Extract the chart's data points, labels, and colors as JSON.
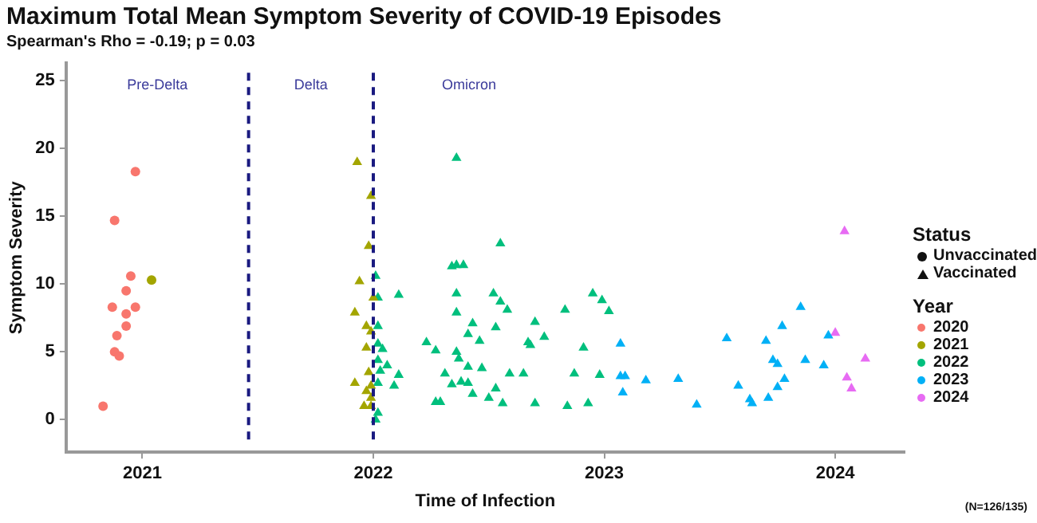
{
  "chart_data": {
    "type": "scatter",
    "title": "Maximum Total Mean Symptom Severity of COVID-19 Episodes",
    "subtitle": "Spearman's Rho = -0.19; p = 0.03",
    "xlabel": "Time of Infection",
    "ylabel": "Symptom Severity",
    "legend_title": "Year",
    "legend": "right",
    "grid": false,
    "xlim": [
      2020.67,
      2024.3
    ],
    "xticks": [
      2021,
      2022,
      2023,
      2024
    ],
    "ylim": [
      -2.4,
      26.3
    ],
    "yticks": [
      0,
      5,
      10,
      15,
      20,
      25
    ],
    "ref_lines": [
      {
        "axis": "x",
        "value": 2021.46,
        "color": "#1a1a80",
        "line_style": "dashed"
      },
      {
        "axis": "x",
        "value": 2022.0,
        "color": "#1a1a80",
        "line_style": "dashed"
      }
    ],
    "annotations": [
      "Pre-Delta",
      "Delta",
      "Omicron",
      "Status",
      "Unvaccinated",
      "Vaccinated",
      "(N=126/135)"
    ],
    "series": [
      {
        "name": "2020",
        "color": "#f8766d",
        "marker": "circle",
        "x": [
          2020.83,
          2020.88,
          2020.97,
          2020.95,
          2020.93,
          2020.87,
          2020.97,
          2020.93,
          2020.93,
          2020.89,
          2020.88,
          2020.9
        ],
        "values": [
          1.0,
          14.7,
          18.3,
          10.6,
          9.5,
          8.3,
          8.3,
          7.8,
          6.9,
          6.2,
          5.0,
          4.7
        ]
      },
      {
        "color": "#a3a500",
        "marker": "circle",
        "x": [
          2021.04
        ],
        "values": [
          10.3
        ]
      },
      {
        "name": "2021",
        "color": "#a3a500",
        "marker": "triangle",
        "x": [
          2021.93,
          2021.99,
          2021.98,
          2021.94,
          2022.0,
          2021.92,
          2021.97,
          2021.99,
          2021.97,
          2021.98,
          2021.92,
          2021.99,
          2021.97,
          2021.99,
          2021.96,
          2021.99
        ],
        "values": [
          19.0,
          16.5,
          12.8,
          10.2,
          9.0,
          7.9,
          6.9,
          6.5,
          5.3,
          3.5,
          2.7,
          2.5,
          2.1,
          1.6,
          1.0,
          1.0
        ]
      },
      {
        "name": "2022",
        "color": "#00bf7d",
        "marker": "triangle",
        "x": [
          2022.01,
          2022.02,
          2022.02,
          2022.02,
          2022.04,
          2022.02,
          2022.06,
          2022.03,
          2022.11,
          2022.09,
          2022.02,
          2022.02,
          2022.01,
          2022.11,
          2022.36,
          2022.55,
          2022.34,
          2022.36,
          2022.39,
          2022.36,
          2022.52,
          2022.55,
          2022.58,
          2022.36,
          2022.83,
          2022.95,
          2022.99,
          2022.43,
          2022.7,
          2022.53,
          2022.41,
          2022.74,
          2022.23,
          2022.46,
          2022.67,
          2022.68,
          2022.27,
          2022.36,
          2022.91,
          2022.37,
          2022.41,
          2022.47,
          2022.31,
          2022.59,
          2022.65,
          2022.87,
          2022.98,
          2022.34,
          2022.38,
          2022.41,
          2022.53,
          2022.43,
          2022.5,
          2022.27,
          2022.29,
          2022.56,
          2022.7,
          2022.84,
          2022.93,
          2023.02
        ],
        "values": [
          10.6,
          9.0,
          6.9,
          5.6,
          5.2,
          4.4,
          4.0,
          3.6,
          3.3,
          2.5,
          2.7,
          0.5,
          0.0,
          9.2,
          19.3,
          13.0,
          11.3,
          11.4,
          11.4,
          9.3,
          9.3,
          8.7,
          8.1,
          7.9,
          8.1,
          9.3,
          8.8,
          7.1,
          7.2,
          6.8,
          6.3,
          6.1,
          5.7,
          5.8,
          5.7,
          5.5,
          5.1,
          5.0,
          5.3,
          4.5,
          3.9,
          3.8,
          3.4,
          3.4,
          3.4,
          3.4,
          3.3,
          2.6,
          2.8,
          2.7,
          2.3,
          1.9,
          1.6,
          1.3,
          1.3,
          1.2,
          1.2,
          1.0,
          1.2,
          8.0
        ]
      },
      {
        "name": "2023",
        "color": "#00b0f6",
        "marker": "triangle",
        "x": [
          2023.07,
          2023.07,
          2023.09,
          2023.08,
          2023.18,
          2023.32,
          2023.4,
          2023.53,
          2023.58,
          2023.63,
          2023.64,
          2023.7,
          2023.71,
          2023.73,
          2023.75,
          2023.75,
          2023.78,
          2023.77,
          2023.85,
          2023.87,
          2023.95,
          2023.97
        ],
        "values": [
          5.6,
          3.2,
          3.2,
          2.0,
          2.9,
          3.0,
          1.1,
          6.0,
          2.5,
          1.5,
          1.2,
          5.8,
          1.6,
          4.4,
          4.1,
          2.4,
          3.0,
          6.9,
          8.3,
          4.4,
          4.0,
          6.2
        ]
      },
      {
        "name": "2024",
        "color": "#e76bf3",
        "marker": "triangle",
        "x": [
          2024.04,
          2024.0,
          2024.13,
          2024.05,
          2024.07
        ],
        "values": [
          13.9,
          6.4,
          4.5,
          3.1,
          2.3
        ]
      }
    ]
  }
}
